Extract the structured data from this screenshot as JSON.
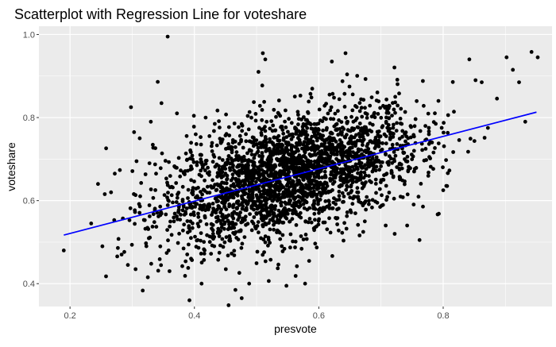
{
  "chart_data": {
    "type": "scatter",
    "title": "Scatterplot with Regression Line for voteshare",
    "xlabel": "presvote",
    "ylabel": "voteshare",
    "xlim": [
      0.15,
      0.975
    ],
    "ylim": [
      0.345,
      1.02
    ],
    "x_ticks": [
      0.2,
      0.4,
      0.6,
      0.8
    ],
    "x_tick_labels": [
      "0.2",
      "0.4",
      "0.6",
      "0.8"
    ],
    "y_ticks": [
      0.4,
      0.6,
      0.8,
      1.0
    ],
    "y_tick_labels": [
      "0.4",
      "0.6",
      "0.8",
      "1.0"
    ],
    "grid": true,
    "panel_background": "#ebebeb",
    "grid_color": "#ffffff",
    "point_color": "#000000",
    "line_color": "#0000ff",
    "regression_line": {
      "x": [
        0.19,
        0.95
      ],
      "y": [
        0.517,
        0.813
      ]
    },
    "points": [
      [
        0.19,
        0.48
      ],
      [
        0.234,
        0.545
      ],
      [
        0.245,
        0.64
      ],
      [
        0.252,
        0.49
      ],
      [
        0.258,
        0.726
      ],
      [
        0.266,
        0.62
      ],
      [
        0.272,
        0.665
      ],
      [
        0.283,
        0.47
      ],
      [
        0.293,
        0.445
      ],
      [
        0.298,
        0.825
      ],
      [
        0.303,
        0.765
      ],
      [
        0.307,
        0.695
      ],
      [
        0.312,
        0.75
      ],
      [
        0.33,
        0.79
      ],
      [
        0.341,
        0.886
      ],
      [
        0.357,
        0.995
      ],
      [
        0.36,
        0.43
      ],
      [
        0.372,
        0.81
      ],
      [
        0.39,
        0.438
      ],
      [
        0.392,
        0.36
      ],
      [
        0.418,
        0.8
      ],
      [
        0.455,
        0.348
      ],
      [
        0.466,
        0.385
      ],
      [
        0.476,
        0.365
      ],
      [
        0.488,
        0.4
      ],
      [
        0.503,
        0.91
      ],
      [
        0.51,
        0.955
      ],
      [
        0.514,
        0.94
      ],
      [
        0.548,
        0.395
      ],
      [
        0.578,
        0.4
      ],
      [
        0.621,
        0.935
      ],
      [
        0.643,
        0.955
      ],
      [
        0.674,
        0.55
      ],
      [
        0.694,
        0.595
      ],
      [
        0.722,
        0.52
      ],
      [
        0.742,
        0.54
      ],
      [
        0.762,
        0.505
      ],
      [
        0.782,
        0.74
      ],
      [
        0.788,
        0.785
      ],
      [
        0.8,
        0.625
      ],
      [
        0.842,
        0.94
      ],
      [
        0.852,
        0.89
      ],
      [
        0.862,
        0.885
      ],
      [
        0.872,
        0.775
      ],
      [
        0.902,
        0.945
      ],
      [
        0.912,
        0.915
      ],
      [
        0.922,
        0.885
      ],
      [
        0.932,
        0.79
      ],
      [
        0.942,
        0.958
      ],
      [
        0.952,
        0.945
      ]
    ]
  }
}
